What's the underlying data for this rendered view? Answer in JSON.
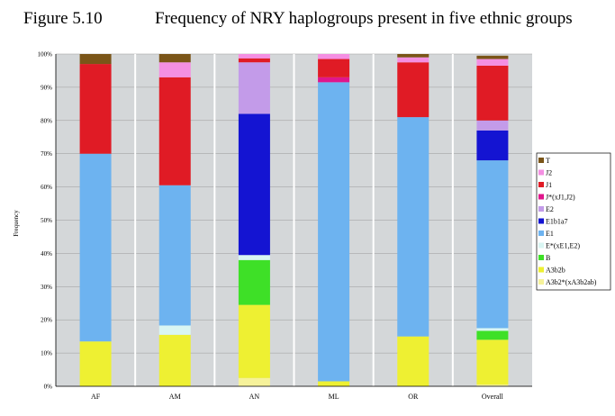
{
  "figure_label": "Figure 5.10",
  "figure_title": "Frequency of NRY haplogroups present in five ethnic groups",
  "chart_data": {
    "type": "bar",
    "stacked": true,
    "categories": [
      "AF",
      "AM",
      "AN",
      "ML",
      "OR",
      "Overall"
    ],
    "ylabel": "Frequency",
    "ylim": [
      0,
      100
    ],
    "yticks": [
      "0%",
      "10%",
      "20%",
      "30%",
      "40%",
      "50%",
      "60%",
      "70%",
      "80%",
      "90%",
      "100%"
    ],
    "legend_position": "right",
    "series": [
      {
        "name": "A3b2*(xA3b2ab)",
        "color": "#f6f29a",
        "values": [
          0,
          0,
          2.5,
          0,
          0,
          0.5
        ]
      },
      {
        "name": "A3b2b",
        "color": "#eef032",
        "values": [
          13.5,
          15.5,
          22,
          1.5,
          15,
          13.5
        ]
      },
      {
        "name": "B",
        "color": "#3ee027",
        "values": [
          0,
          0,
          13.5,
          0,
          0,
          2.7
        ]
      },
      {
        "name": "E*(xE1,E2)",
        "color": "#d9f6f3",
        "values": [
          0,
          2.8,
          1.5,
          0,
          0,
          0.8
        ]
      },
      {
        "name": "E1",
        "color": "#6db3f0",
        "values": [
          56.5,
          42.2,
          0,
          90,
          66,
          50.5
        ]
      },
      {
        "name": "E1b1a7",
        "color": "#1414d2",
        "values": [
          0,
          0,
          42.5,
          0,
          0,
          9
        ]
      },
      {
        "name": "E2",
        "color": "#c39be9",
        "values": [
          0,
          0,
          15.5,
          0,
          0,
          3
        ]
      },
      {
        "name": "J*(xJ1,J2)",
        "color": "#e0168c",
        "values": [
          0,
          0,
          0,
          1.5,
          0,
          0
        ]
      },
      {
        "name": "J1",
        "color": "#e01b25",
        "values": [
          27,
          32.5,
          1.2,
          5.5,
          16.5,
          16.5
        ]
      },
      {
        "name": "J2",
        "color": "#f48fe2",
        "values": [
          0,
          4.5,
          1.3,
          1.5,
          1.5,
          2
        ]
      },
      {
        "name": "T",
        "color": "#7a5518",
        "values": [
          3,
          2.5,
          0,
          0,
          1,
          1
        ]
      }
    ]
  }
}
